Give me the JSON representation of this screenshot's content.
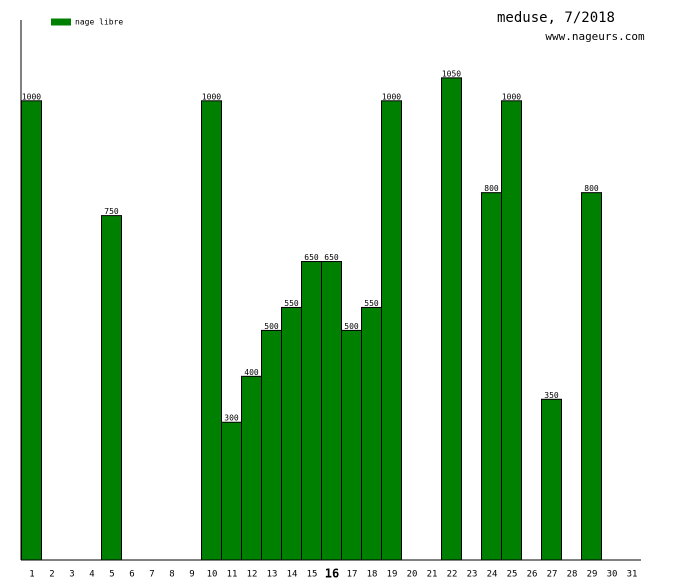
{
  "chart_data": {
    "type": "bar",
    "title": "meduse, 7/2018",
    "subtitle": "www.nageurs.com",
    "categories": [
      "1",
      "2",
      "3",
      "4",
      "5",
      "6",
      "7",
      "8",
      "9",
      "10",
      "11",
      "12",
      "13",
      "14",
      "15",
      "16",
      "17",
      "18",
      "19",
      "20",
      "21",
      "22",
      "23",
      "24",
      "25",
      "26",
      "27",
      "28",
      "29",
      "30",
      "31"
    ],
    "series": [
      {
        "name": "nage libre",
        "color": "#008000",
        "values": [
          1000,
          null,
          null,
          null,
          750,
          null,
          null,
          null,
          null,
          1000,
          300,
          400,
          500,
          550,
          650,
          650,
          500,
          550,
          1000,
          null,
          null,
          1050,
          null,
          800,
          1000,
          null,
          350,
          null,
          800,
          null,
          null
        ]
      }
    ],
    "highlighted_category": "16",
    "ylim": [
      0,
      1176
    ],
    "legend": "top-left"
  }
}
